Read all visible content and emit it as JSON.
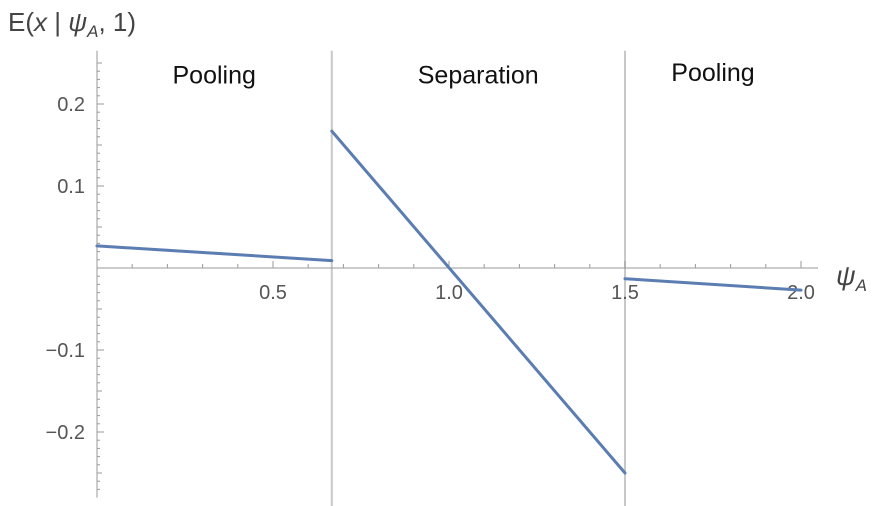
{
  "chart_data": {
    "type": "line",
    "ylabel": {
      "pre": "E(",
      "var": "x",
      "bar": " | ",
      "psi": "ψ",
      "sub": "A",
      "post": ", 1)"
    },
    "xlabel": {
      "psi": "ψ",
      "sub": "A"
    },
    "xlim": [
      0,
      2.0
    ],
    "ylim": [
      -0.28,
      0.26
    ],
    "x_ticks": [
      {
        "value": 0.5,
        "label": "0.5"
      },
      {
        "value": 1.0,
        "label": "1.0"
      },
      {
        "value": 1.5,
        "label": "1.5"
      },
      {
        "value": 2.0,
        "label": "2.0"
      }
    ],
    "y_ticks": [
      {
        "value": 0.2,
        "label": "0.2"
      },
      {
        "value": 0.1,
        "label": "0.1"
      },
      {
        "value": -0.1,
        "label": "−0.1"
      },
      {
        "value": -0.2,
        "label": "−0.2"
      }
    ],
    "boundaries": [
      0.667,
      1.5
    ],
    "regions": [
      {
        "label": "Pooling",
        "x_center": 0.333,
        "y": 0.225
      },
      {
        "label": "Separation",
        "x_center": 1.083,
        "y": 0.225
      },
      {
        "label": "Pooling",
        "x_center": 1.75,
        "y": 0.228
      }
    ],
    "series": [
      {
        "points": [
          [
            0,
            0.027
          ],
          [
            0.667,
            0.009
          ]
        ]
      },
      {
        "points": [
          [
            0.667,
            0.167
          ],
          [
            1.5,
            -0.25
          ]
        ]
      },
      {
        "points": [
          [
            1.5,
            -0.013
          ],
          [
            2.0,
            -0.027
          ]
        ]
      }
    ],
    "grid": false,
    "colors": {
      "line": "#5b7db1",
      "axis": "#9a9a9a",
      "boundary": "#c8c8c8"
    }
  }
}
